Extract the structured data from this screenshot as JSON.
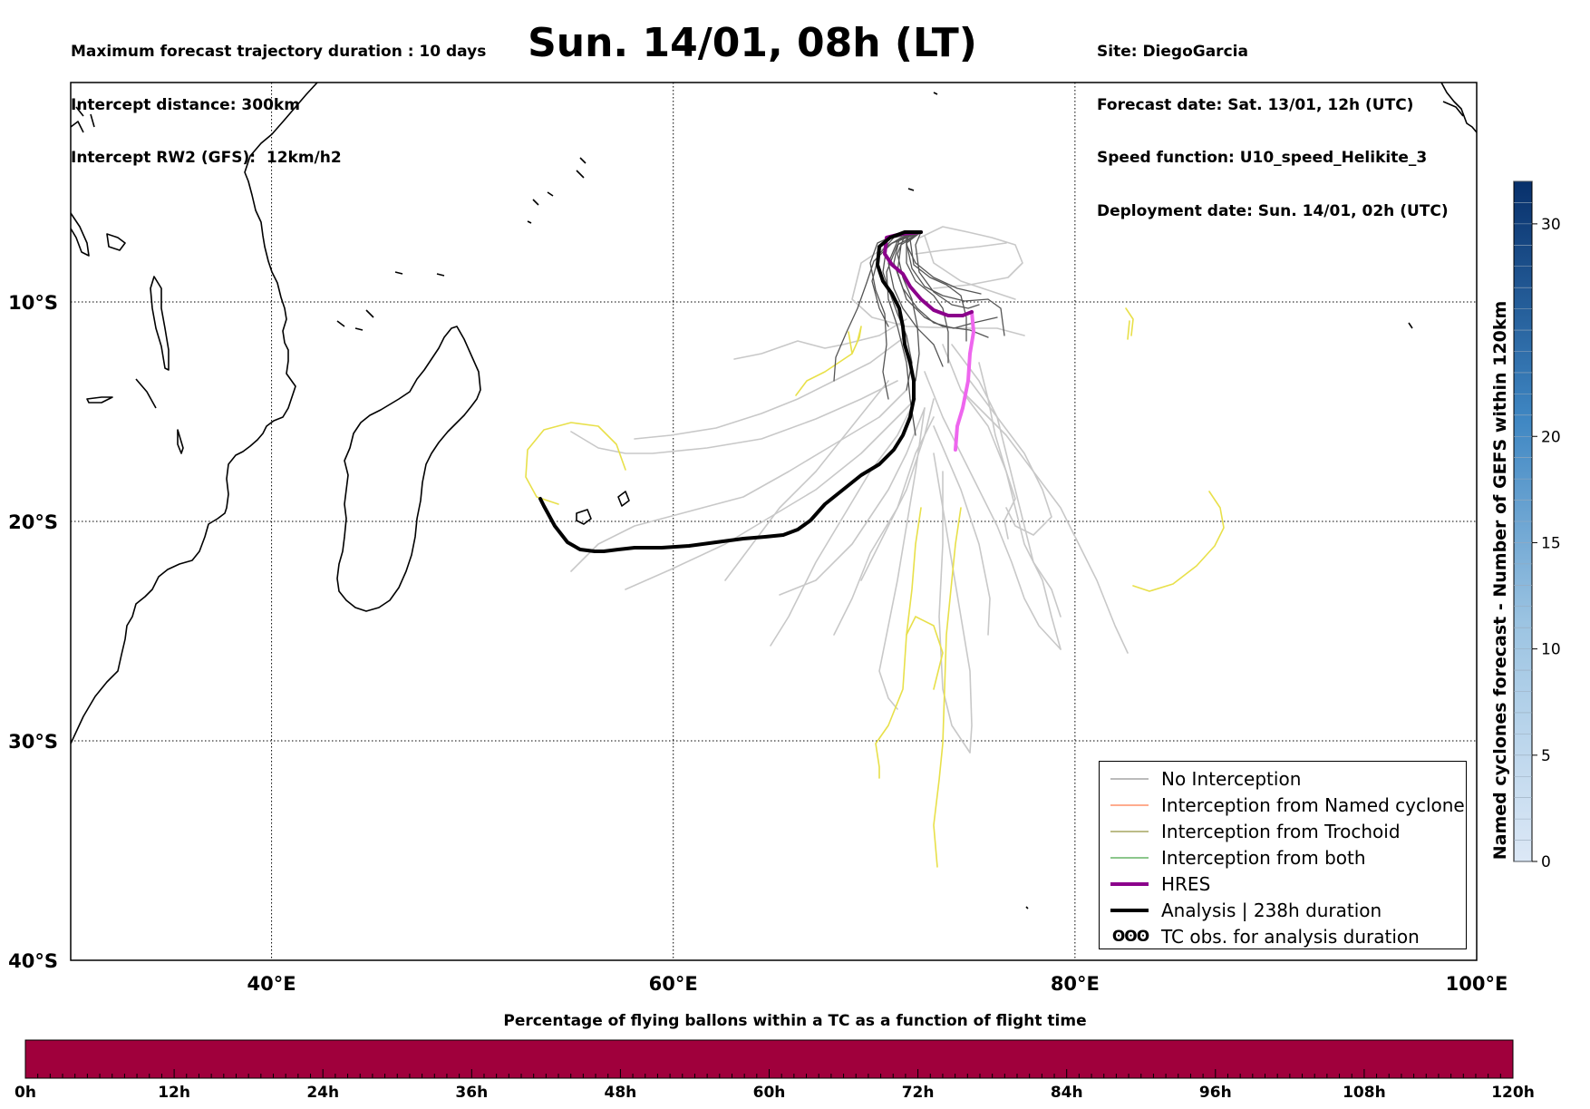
{
  "header_left": [
    "Maximum forecast trajectory duration : 10 days",
    "Intercept distance: 300km",
    "Intercept RW2 (GFS):  12km/h2"
  ],
  "header_right": [
    "Site: DiegoGarcia",
    "Forecast date: Sat. 13/01, 12h (UTC)",
    "Speed function: U10_speed_Helikite_3",
    "Deployment date: Sun. 14/01, 02h (UTC)"
  ],
  "title": "Sun. 14/01, 08h (LT)",
  "map": {
    "lon_range": [
      30,
      100
    ],
    "lat_range": [
      0,
      -40
    ],
    "lon_ticks": [
      {
        "value": 40,
        "label": "40°E"
      },
      {
        "value": 60,
        "label": "60°E"
      },
      {
        "value": 80,
        "label": "80°E"
      },
      {
        "value": 100,
        "label": "100°E"
      }
    ],
    "lat_ticks": [
      {
        "value": -10,
        "label": "10°S"
      },
      {
        "value": -20,
        "label": "20°S"
      },
      {
        "value": -30,
        "label": "30°S"
      },
      {
        "value": -40,
        "label": "40°S"
      }
    ],
    "grid": "dotted",
    "colors": {
      "no_interception": "#555555",
      "ensemble_light": "#c8c8c8",
      "named_cyclone": "#ff5a1e",
      "trochoid": "#7a7a10",
      "both": "#1a8f1a",
      "hres": "#8b008b",
      "hres_tail": "#ee66ee",
      "analysis": "#000000",
      "yellow_track": "#e8e04a"
    }
  },
  "legend": {
    "items": [
      {
        "label": "No Interception",
        "color": "#777777",
        "width": 1
      },
      {
        "label": "Interception from Named cyclone",
        "color": "#ff5a1e",
        "width": 1
      },
      {
        "label": "Interception from Trochoid",
        "color": "#7a7a10",
        "width": 1
      },
      {
        "label": "Interception from both",
        "color": "#1a8f1a",
        "width": 1
      },
      {
        "label": "HRES",
        "color": "#8b008b",
        "width": 4
      },
      {
        "label": "Analysis | 238h duration",
        "color": "#000000",
        "width": 4
      }
    ],
    "symbol_item": {
      "symbol": "ʘʘʘ",
      "label": "TC obs. for analysis duration"
    }
  },
  "colorbar_right": {
    "title": "Named cyclones forecast - Number of GEFS within 120km",
    "range": [
      0,
      32
    ],
    "ticks": [
      "0",
      "5",
      "10",
      "15",
      "20",
      "30"
    ],
    "tick_values": [
      0,
      5,
      10,
      15,
      20,
      30
    ],
    "color_low": "#dce8f6",
    "color_high": "#08306b"
  },
  "bottom_bar": {
    "title": "Percentage of flying ballons within a TC as a function of flight time",
    "color": "#a0003c",
    "ticks": [
      "0h",
      "12h",
      "24h",
      "36h",
      "48h",
      "60h",
      "72h",
      "84h",
      "96h",
      "108h",
      "120h"
    ]
  }
}
